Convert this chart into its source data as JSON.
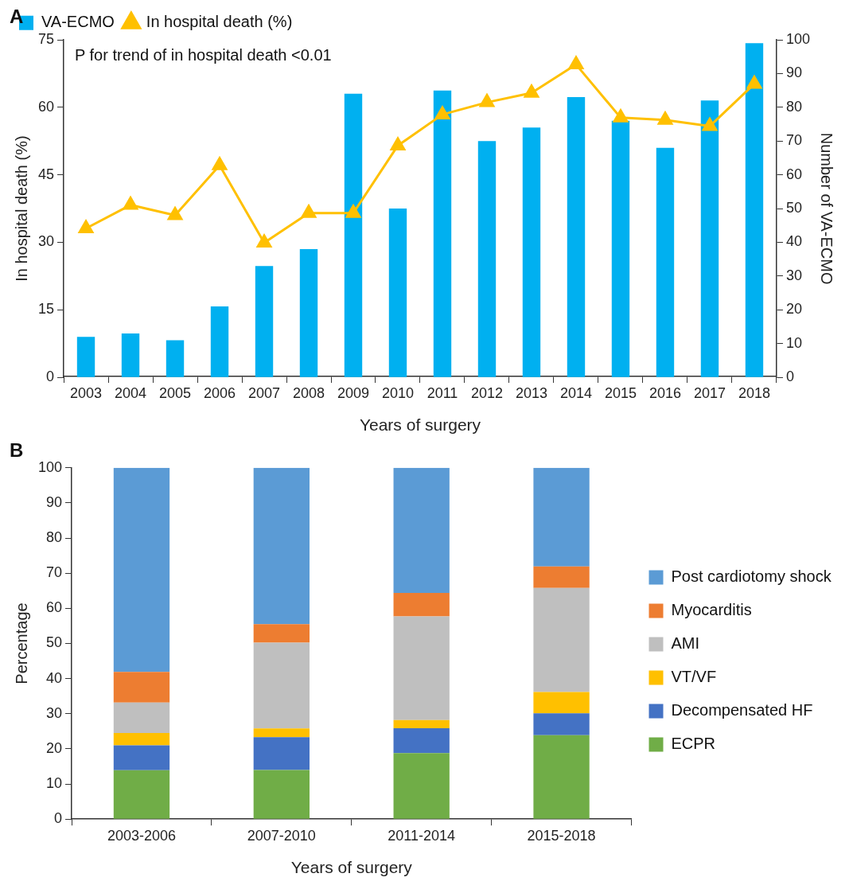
{
  "chart_data": [
    {
      "type": "bar",
      "title": "A",
      "xlabel": "Years of surgery",
      "ylabel": "In hospital death (%)",
      "y2label": "Number of VA-ECMO",
      "categories": [
        "2003",
        "2004",
        "2005",
        "2006",
        "2007",
        "2008",
        "2009",
        "2010",
        "2011",
        "2012",
        "2013",
        "2014",
        "2015",
        "2016",
        "2017",
        "2018"
      ],
      "series": [
        {
          "name": "VA-ECMO",
          "type": "bar",
          "axis": "y2",
          "color": "#00b0f0",
          "values": [
            12,
            13,
            11,
            21,
            33,
            38,
            84,
            50,
            85,
            70,
            74,
            83,
            76,
            68,
            82,
            99
          ]
        },
        {
          "name": "In hospital death (%)",
          "type": "line",
          "color": "#ffc000",
          "values": [
            33.1,
            38.3,
            36.0,
            47.1,
            29.9,
            36.5,
            36.5,
            51.5,
            58.4,
            61.1,
            63.2,
            69.5,
            57.7,
            57.2,
            55.8,
            65.2
          ]
        }
      ],
      "ylim": [
        0,
        75
      ],
      "yticks": [
        0,
        15,
        30,
        45,
        60,
        75
      ],
      "y2lim": [
        0,
        100
      ],
      "y2ticks": [
        0,
        10,
        20,
        30,
        40,
        50,
        60,
        70,
        80,
        90,
        100
      ],
      "marker": "triangle",
      "legend": "top left",
      "annotations": [
        "P for trend of in hospital death <0.01"
      ]
    },
    {
      "type": "bar",
      "title": "B",
      "xlabel": "Years of surgery",
      "ylabel": "Percentage",
      "stacked": true,
      "categories": [
        "2003-2006",
        "2007-2010",
        "2011-2014",
        "2015-2018"
      ],
      "series": [
        {
          "name": "ECPR",
          "color": "#70ad47",
          "values": [
            13.9,
            14.0,
            18.8,
            23.9
          ]
        },
        {
          "name": "Decompensated HF",
          "color": "#4472c4",
          "values": [
            7.1,
            9.3,
            7.1,
            6.2
          ]
        },
        {
          "name": "VT/VF",
          "color": "#ffc000",
          "values": [
            3.5,
            2.5,
            2.3,
            6.1
          ]
        },
        {
          "name": "AMI",
          "color": "#bfbfbf",
          "values": [
            8.7,
            24.4,
            29.5,
            29.6
          ]
        },
        {
          "name": "Myocarditis",
          "color": "#ed7d31",
          "values": [
            8.7,
            5.3,
            6.7,
            6.1
          ]
        },
        {
          "name": "Post cardiotomy shock",
          "color": "#5b9bd5",
          "values": [
            58.1,
            44.5,
            35.6,
            28.1
          ]
        }
      ],
      "ylim": [
        0,
        100
      ],
      "yticks": [
        0,
        10,
        20,
        30,
        40,
        50,
        60,
        70,
        80,
        90,
        100
      ],
      "legend": "right"
    }
  ]
}
